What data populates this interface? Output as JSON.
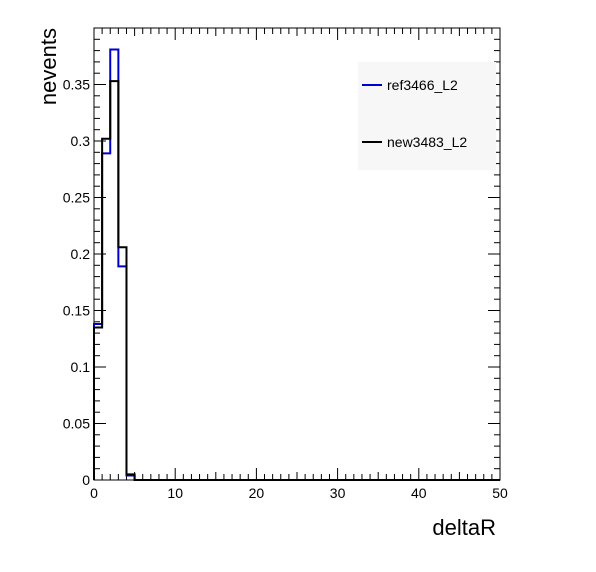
{
  "chart_data": {
    "type": "line",
    "title": "",
    "xlabel": "deltaR",
    "ylabel": "nevents",
    "xlim": [
      0,
      50
    ],
    "ylim": [
      0,
      0.4
    ],
    "x_ticks": [
      "0",
      "10",
      "20",
      "30",
      "40",
      "50"
    ],
    "x_tick_values": [
      0,
      10,
      20,
      30,
      40,
      50
    ],
    "y_ticks": [
      "0",
      "0.05",
      "0.1",
      "0.15",
      "0.2",
      "0.25",
      "0.3",
      "0.35"
    ],
    "y_tick_values": [
      0,
      0.05,
      0.1,
      0.15,
      0.2,
      0.25,
      0.3,
      0.35
    ],
    "bin_edges": [
      0,
      1,
      2,
      3,
      4,
      5,
      6,
      7,
      8,
      9,
      10,
      11,
      12,
      13,
      14,
      15,
      16,
      17,
      18,
      19,
      20,
      21,
      22,
      23,
      24,
      25,
      26,
      27,
      28,
      29,
      30,
      31,
      32,
      33,
      34,
      35,
      36,
      37,
      38,
      39,
      40,
      41,
      42,
      43,
      44,
      45,
      46,
      47,
      48,
      49,
      50
    ],
    "series": [
      {
        "name": "ref3466_L2",
        "color": "#0000cc",
        "values": [
          0.138,
          0.289,
          0.381,
          0.189,
          0.004,
          0,
          0,
          0,
          0,
          0,
          0,
          0,
          0,
          0,
          0,
          0,
          0,
          0,
          0,
          0,
          0,
          0,
          0,
          0,
          0,
          0,
          0,
          0,
          0,
          0,
          0,
          0,
          0,
          0,
          0,
          0,
          0,
          0,
          0,
          0,
          0,
          0,
          0,
          0,
          0,
          0,
          0,
          0,
          0,
          0
        ]
      },
      {
        "name": "new3483_L2",
        "color": "#000000",
        "values": [
          0.135,
          0.302,
          0.353,
          0.206,
          0.005,
          0,
          0,
          0,
          0,
          0,
          0,
          0,
          0,
          0,
          0,
          0,
          0,
          0,
          0,
          0,
          0,
          0,
          0,
          0,
          0,
          0,
          0,
          0,
          0,
          0,
          0,
          0,
          0,
          0,
          0,
          0,
          0,
          0,
          0,
          0,
          0,
          0,
          0,
          0,
          0,
          0,
          0,
          0,
          0,
          0
        ]
      }
    ],
    "legend_position": "top-right",
    "grid": false
  }
}
